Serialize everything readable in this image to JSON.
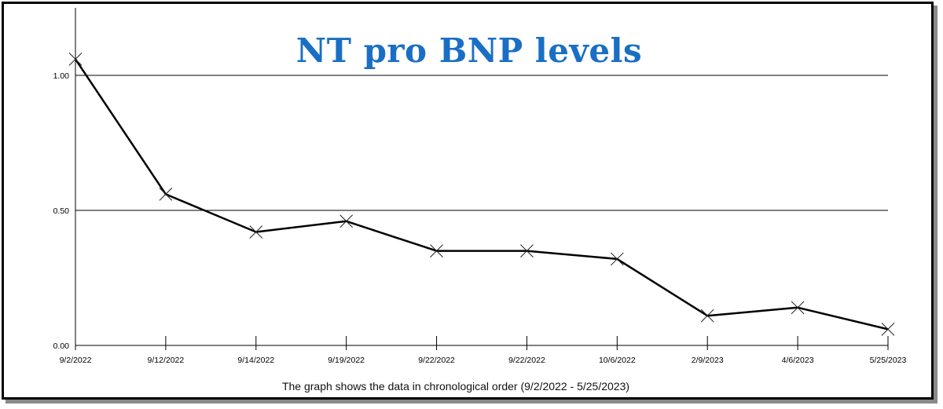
{
  "chart_data": {
    "type": "line",
    "title": "NT pro BNP levels",
    "caption": "The graph shows the data in chronological order (9/2/2022 - 5/25/2023)",
    "x": [
      "9/2/2022",
      "9/12/2022",
      "9/14/2022",
      "9/19/2022",
      "9/22/2022",
      "9/22/2022",
      "10/6/2022",
      "2/9/2023",
      "4/6/2023",
      "5/25/2023"
    ],
    "series": [
      {
        "values": [
          1.06,
          0.56,
          0.42,
          0.46,
          0.35,
          0.35,
          0.32,
          0.11,
          0.14,
          0.06
        ],
        "color": "#000000",
        "marker": "x"
      }
    ],
    "yticks": [
      "0.00",
      "0.50",
      "1.00"
    ],
    "ytick_values": [
      0,
      0.5,
      1.0
    ],
    "ylim": [
      0,
      1.25
    ],
    "grid": "horizontal",
    "title_color": "#1a6fc4"
  }
}
